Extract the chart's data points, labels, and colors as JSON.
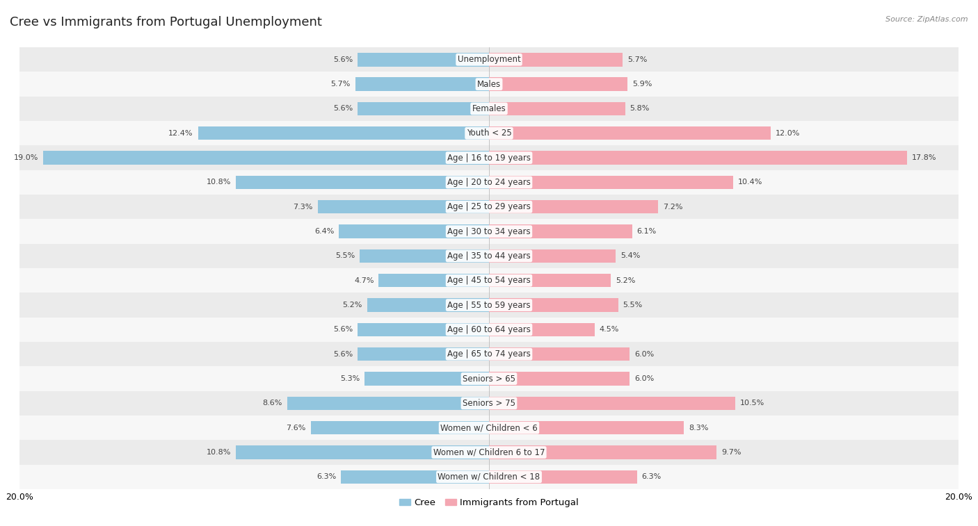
{
  "title": "Cree vs Immigrants from Portugal Unemployment",
  "source": "Source: ZipAtlas.com",
  "categories": [
    "Unemployment",
    "Males",
    "Females",
    "Youth < 25",
    "Age | 16 to 19 years",
    "Age | 20 to 24 years",
    "Age | 25 to 29 years",
    "Age | 30 to 34 years",
    "Age | 35 to 44 years",
    "Age | 45 to 54 years",
    "Age | 55 to 59 years",
    "Age | 60 to 64 years",
    "Age | 65 to 74 years",
    "Seniors > 65",
    "Seniors > 75",
    "Women w/ Children < 6",
    "Women w/ Children 6 to 17",
    "Women w/ Children < 18"
  ],
  "cree_values": [
    5.6,
    5.7,
    5.6,
    12.4,
    19.0,
    10.8,
    7.3,
    6.4,
    5.5,
    4.7,
    5.2,
    5.6,
    5.6,
    5.3,
    8.6,
    7.6,
    10.8,
    6.3
  ],
  "portugal_values": [
    5.7,
    5.9,
    5.8,
    12.0,
    17.8,
    10.4,
    7.2,
    6.1,
    5.4,
    5.2,
    5.5,
    4.5,
    6.0,
    6.0,
    10.5,
    8.3,
    9.7,
    6.3
  ],
  "cree_color": "#92c5de",
  "portugal_color": "#f4a7b2",
  "bg_color_odd": "#ebebeb",
  "bg_color_even": "#f7f7f7",
  "bar_height": 0.55,
  "xlim": 20.0,
  "title_fontsize": 13,
  "label_fontsize": 8.5,
  "value_fontsize": 8,
  "legend_fontsize": 9.5
}
